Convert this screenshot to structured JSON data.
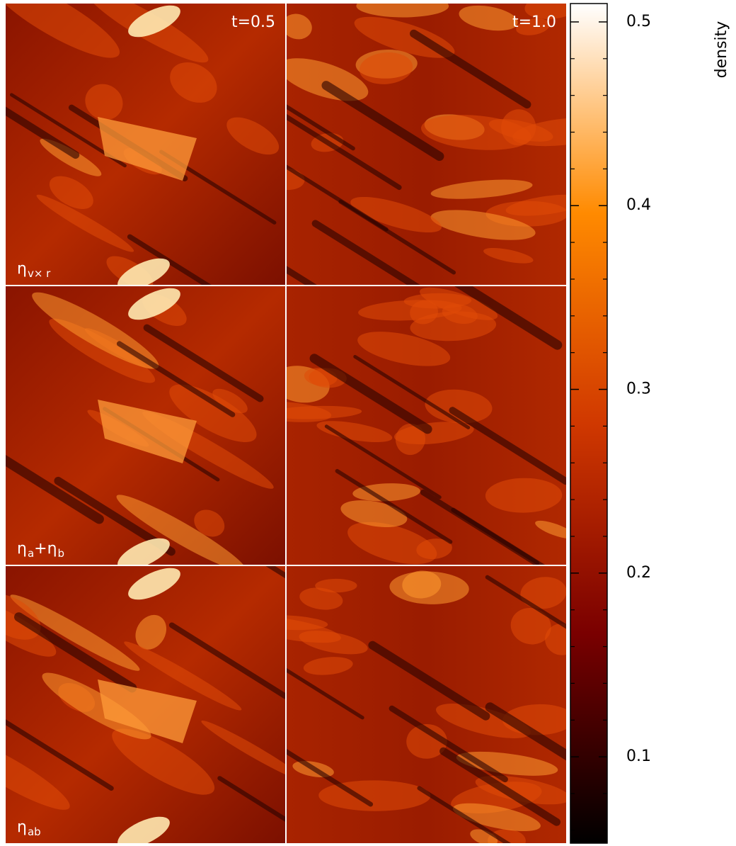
{
  "chart_data": {
    "type": "heatmap-grid",
    "columns": [
      "t=0.5",
      "t=1.0"
    ],
    "rows": [
      [
        {
          "text": "η"
        },
        {
          "text": "v× r",
          "sub": true
        }
      ],
      [
        {
          "text": "η"
        },
        {
          "text": "a",
          "sub": true
        },
        {
          "text": "+η"
        },
        {
          "text": "b",
          "sub": true
        }
      ],
      [
        {
          "text": "η"
        },
        {
          "text": "ab",
          "sub": true
        }
      ]
    ],
    "colorbar": {
      "label": "density",
      "lim": [
        0.053,
        0.51
      ],
      "ticks": [
        0.1,
        0.2,
        0.3,
        0.4,
        0.5
      ],
      "minor_ticks": [
        0.06,
        0.08,
        0.12,
        0.14,
        0.16,
        0.18,
        0.22,
        0.24,
        0.26,
        0.28,
        0.32,
        0.34,
        0.36,
        0.38,
        0.42,
        0.44,
        0.46,
        0.48
      ],
      "colors": [
        "#000000",
        "#7a0000",
        "#d03800",
        "#ff8a00",
        "#ffffff"
      ]
    }
  }
}
